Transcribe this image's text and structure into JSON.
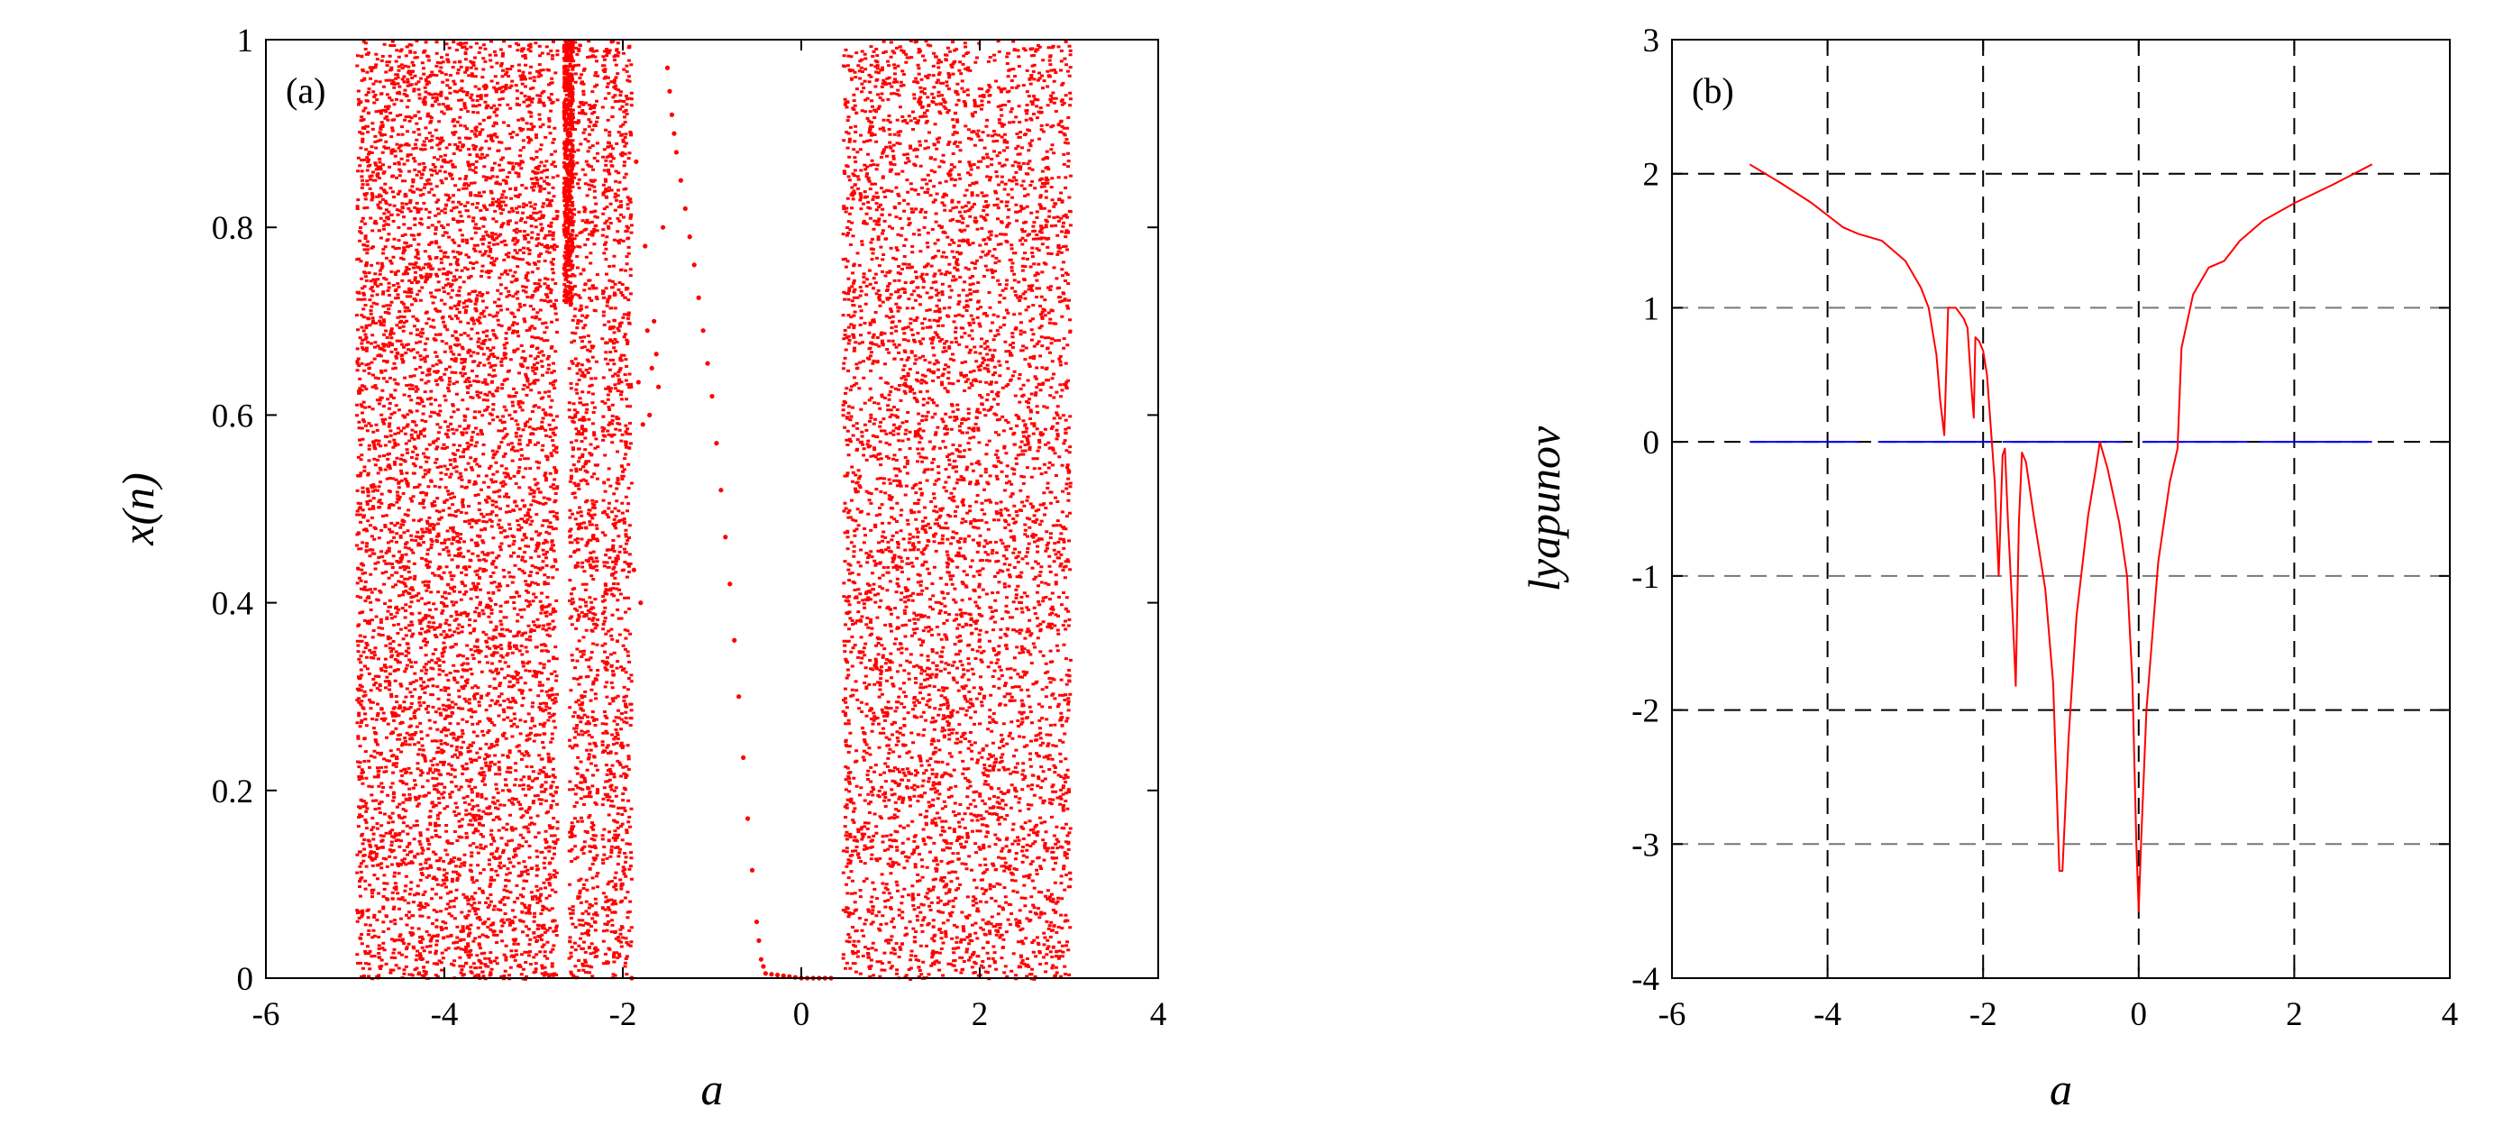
{
  "chart_data": [
    {
      "type": "scatter",
      "panel_label": "(a)",
      "title": "",
      "xlabel": "a",
      "ylabel": "x(n)",
      "xlim": [
        -6,
        4
      ],
      "ylim": [
        0,
        1
      ],
      "xticks": [
        "-6",
        "-4",
        "-2",
        "0",
        "2",
        "4"
      ],
      "yticks": [
        "0",
        "0.2",
        "0.4",
        "0.6",
        "0.8",
        "1"
      ],
      "grid": false,
      "color": "#ff0000",
      "chaotic_regions": [
        [
          -5,
          -2.75
        ],
        [
          -2.62,
          -2.3
        ],
        [
          -2.25,
          -1.92
        ],
        [
          0.45,
          3
        ]
      ],
      "dense_band": [
        -2.68,
        -2.58
      ],
      "periodic_branch": [
        [
          -1.9,
          0.0
        ],
        [
          -1.85,
          0.87
        ],
        [
          -1.8,
          0.4
        ],
        [
          -1.75,
          0.78
        ],
        [
          -1.7,
          0.6
        ],
        [
          -1.65,
          0.7
        ],
        [
          -1.6,
          0.63
        ],
        [
          -1.5,
          0.97
        ],
        [
          -1.45,
          0.92
        ],
        [
          -1.4,
          0.88
        ],
        [
          -1.3,
          0.82
        ],
        [
          -1.2,
          0.76
        ],
        [
          -1.1,
          0.69
        ],
        [
          -1.0,
          0.62
        ],
        [
          -0.9,
          0.52
        ],
        [
          -0.8,
          0.42
        ],
        [
          -0.7,
          0.3
        ],
        [
          -0.6,
          0.17
        ],
        [
          -0.5,
          0.06
        ],
        [
          -0.45,
          0.02
        ],
        [
          -0.4,
          0.005
        ],
        [
          0.0,
          0.0
        ],
        [
          0.4,
          0.0
        ]
      ]
    },
    {
      "type": "line",
      "panel_label": "(b)",
      "title": "",
      "xlabel": "a",
      "ylabel": "lyapunov",
      "xlim": [
        -6,
        4
      ],
      "ylim": [
        -4,
        3
      ],
      "xticks": [
        "-6",
        "-4",
        "-2",
        "0",
        "2",
        "4"
      ],
      "yticks": [
        "-4",
        "-3",
        "-2",
        "-1",
        "0",
        "1",
        "2",
        "3"
      ],
      "grid": true,
      "series": [
        {
          "color": "#ff0000",
          "points": [
            [
              -5.0,
              2.07
            ],
            [
              -4.6,
              1.93
            ],
            [
              -4.2,
              1.78
            ],
            [
              -3.8,
              1.6
            ],
            [
              -3.6,
              1.55
            ],
            [
              -3.3,
              1.5
            ],
            [
              -3.0,
              1.35
            ],
            [
              -2.8,
              1.15
            ],
            [
              -2.7,
              1.0
            ],
            [
              -2.6,
              0.65
            ],
            [
              -2.55,
              0.3
            ],
            [
              -2.5,
              0.05
            ],
            [
              -2.47,
              0.6
            ],
            [
              -2.45,
              1.0
            ],
            [
              -2.35,
              1.0
            ],
            [
              -2.25,
              0.92
            ],
            [
              -2.2,
              0.85
            ],
            [
              -2.15,
              0.4
            ],
            [
              -2.12,
              0.18
            ],
            [
              -2.1,
              0.78
            ],
            [
              -2.05,
              0.75
            ],
            [
              -2.0,
              0.68
            ],
            [
              -1.95,
              0.5
            ],
            [
              -1.9,
              0.1
            ],
            [
              -1.85,
              -0.3
            ],
            [
              -1.8,
              -1.0
            ],
            [
              -1.75,
              -0.1
            ],
            [
              -1.72,
              -0.05
            ],
            [
              -1.68,
              -0.6
            ],
            [
              -1.62,
              -1.3
            ],
            [
              -1.58,
              -1.82
            ],
            [
              -1.54,
              -0.6
            ],
            [
              -1.5,
              -0.08
            ],
            [
              -1.45,
              -0.15
            ],
            [
              -1.35,
              -0.55
            ],
            [
              -1.2,
              -1.1
            ],
            [
              -1.1,
              -1.8
            ],
            [
              -1.02,
              -3.2
            ],
            [
              -0.98,
              -3.2
            ],
            [
              -0.9,
              -2.2
            ],
            [
              -0.8,
              -1.3
            ],
            [
              -0.65,
              -0.55
            ],
            [
              -0.55,
              -0.2
            ],
            [
              -0.5,
              0.0
            ],
            [
              -0.4,
              -0.2
            ],
            [
              -0.25,
              -0.6
            ],
            [
              -0.15,
              -1.0
            ],
            [
              -0.08,
              -1.8
            ],
            [
              -0.03,
              -3.0
            ],
            [
              0.0,
              -3.5
            ],
            [
              0.03,
              -3.0
            ],
            [
              0.1,
              -2.0
            ],
            [
              0.25,
              -0.9
            ],
            [
              0.4,
              -0.3
            ],
            [
              0.5,
              -0.05
            ],
            [
              0.55,
              0.7
            ],
            [
              0.7,
              1.1
            ],
            [
              0.9,
              1.3
            ],
            [
              1.1,
              1.35
            ],
            [
              1.3,
              1.5
            ],
            [
              1.6,
              1.65
            ],
            [
              2.0,
              1.78
            ],
            [
              2.5,
              1.92
            ],
            [
              3.0,
              2.07
            ]
          ]
        },
        {
          "color": "#0000ff",
          "segments": [
            [
              -5,
              -3.6
            ],
            [
              -3.35,
              -1.9
            ],
            [
              -1.75,
              -0.2
            ],
            [
              0.05,
              1.4
            ],
            [
              1.55,
              3
            ]
          ],
          "y": 0
        }
      ]
    }
  ]
}
